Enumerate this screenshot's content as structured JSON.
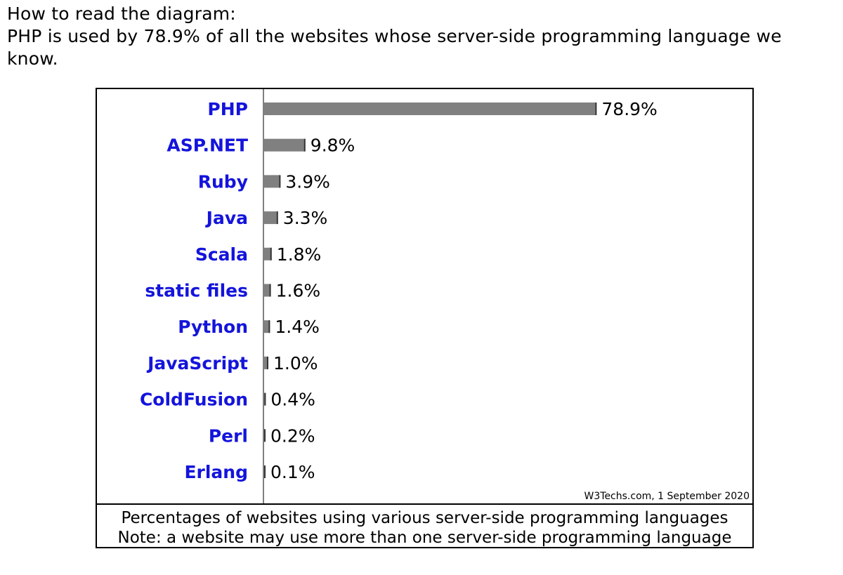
{
  "intro": {
    "heading": "How to read the diagram:",
    "explanation": "PHP is used by 78.9% of all the websites whose server-side programming language we know."
  },
  "credit": "W3Techs.com, 1 September 2020",
  "caption": {
    "line1": "Percentages of websites using various server-side programming languages",
    "line2": "Note: a website may use more than one server-side programming language"
  },
  "colors": {
    "bar": "#808080",
    "bar_edge": "#333333",
    "label": "#1414dc",
    "axis": "#808080"
  },
  "chart_data": {
    "type": "bar",
    "orientation": "horizontal",
    "categories": [
      "PHP",
      "ASP.NET",
      "Ruby",
      "Java",
      "Scala",
      "static files",
      "Python",
      "JavaScript",
      "ColdFusion",
      "Perl",
      "Erlang"
    ],
    "values": [
      78.9,
      9.8,
      3.9,
      3.3,
      1.8,
      1.6,
      1.4,
      1.0,
      0.4,
      0.2,
      0.1
    ],
    "value_labels": [
      "78.9%",
      "9.8%",
      "3.9%",
      "3.3%",
      "1.8%",
      "1.6%",
      "1.4%",
      "1.0%",
      "0.4%",
      "0.2%",
      "0.1%"
    ],
    "unit": "%",
    "xlim": [
      0,
      100
    ],
    "grid": false,
    "legend": "none"
  }
}
